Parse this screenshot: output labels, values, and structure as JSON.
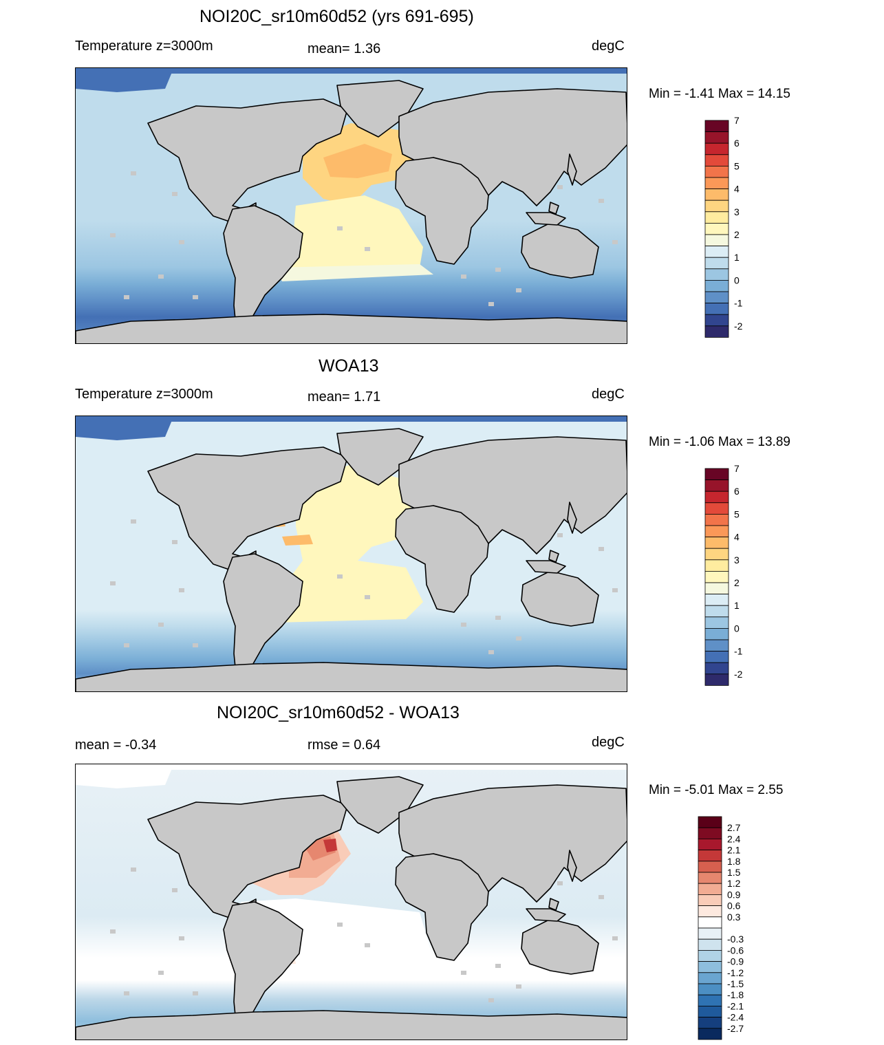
{
  "panels": [
    {
      "title": "NOI20C_sr10m60d52 (yrs 691-695)",
      "left_label": "Temperature z=3000m",
      "center_label": "mean=   1.36",
      "units": "degC",
      "minmax": "Min =  -1.41 Max =  14.15",
      "variant": "model",
      "colorbar": {
        "colors": [
          "#2e2a6b",
          "#31458f",
          "#4470b5",
          "#5f90c7",
          "#7aaed6",
          "#9cc6e2",
          "#bfdcec",
          "#dcedf5",
          "#f5f8df",
          "#fff7bd",
          "#ffec9f",
          "#fed581",
          "#fdbb6a",
          "#fb9858",
          "#f2744a",
          "#e34a3a",
          "#c6262e",
          "#97142a",
          "#680525"
        ],
        "tick_labels": [
          "-2",
          "-1",
          "0",
          "1",
          "2",
          "3",
          "4",
          "5",
          "6",
          "7"
        ]
      }
    },
    {
      "title": "WOA13",
      "left_label": "Temperature z=3000m",
      "center_label": "mean=   1.71",
      "units": "degC",
      "minmax": "Min =  -1.06 Max =  13.89",
      "variant": "obs",
      "colorbar": {
        "colors": [
          "#2e2a6b",
          "#31458f",
          "#4470b5",
          "#5f90c7",
          "#7aaed6",
          "#9cc6e2",
          "#bfdcec",
          "#dcedf5",
          "#f5f8df",
          "#fff7bd",
          "#ffec9f",
          "#fed581",
          "#fdbb6a",
          "#fb9858",
          "#f2744a",
          "#e34a3a",
          "#c6262e",
          "#97142a",
          "#680525"
        ],
        "tick_labels": [
          "-2",
          "-1",
          "0",
          "1",
          "2",
          "3",
          "4",
          "5",
          "6",
          "7"
        ]
      }
    },
    {
      "title": "NOI20C_sr10m60d52 - WOA13",
      "left_label": "mean =  -0.34",
      "center_label": "rmse =   0.64",
      "units": "degC",
      "minmax": "Min =  -5.01 Max =   2.55",
      "variant": "diff",
      "colorbar": {
        "colors": [
          "#0a2a5e",
          "#153f7e",
          "#1f5a9c",
          "#2f73b3",
          "#4c8fc3",
          "#6aa5d0",
          "#8ebedd",
          "#b0d3e6",
          "#cfe3ee",
          "#e8f1f6",
          "#ffffff",
          "#fde9df",
          "#f9ccb8",
          "#f2ac93",
          "#e6876f",
          "#d7604f",
          "#c43838",
          "#a8182d",
          "#7e0b22",
          "#5a0018"
        ],
        "tick_labels": [
          "-2.7",
          "-2.4",
          "-2.1",
          "-1.8",
          "-1.5",
          "-1.2",
          "-0.9",
          "-0.6",
          "-0.3",
          "0.3",
          "0.6",
          "0.9",
          "1.2",
          "1.5",
          "1.8",
          "2.1",
          "2.4",
          "2.7"
        ]
      }
    }
  ],
  "colors": {
    "land": "#c8c8c8",
    "coastline": "#000000"
  }
}
